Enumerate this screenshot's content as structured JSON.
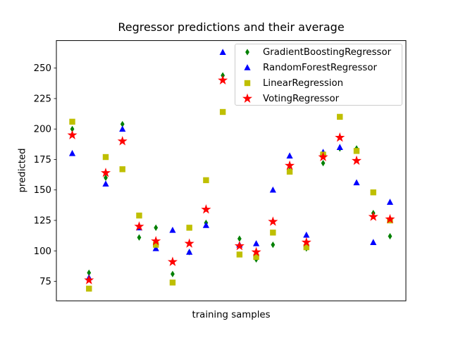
{
  "figure": {
    "background": "#ffffff"
  },
  "axes": {
    "spine_color": "#000000",
    "tick_color": "#000000"
  },
  "chart_data": {
    "type": "scatter",
    "title": "Regressor predictions and their average",
    "xlabel": "training samples",
    "ylabel": "predicted",
    "x": [
      0,
      1,
      2,
      3,
      4,
      5,
      6,
      7,
      8,
      9,
      10,
      11,
      12,
      13,
      14,
      15,
      16,
      17,
      18,
      19
    ],
    "xlim": [
      -0.95,
      19.95
    ],
    "ylim": [
      59.0,
      272.6
    ],
    "yticks": [
      75,
      100,
      125,
      150,
      175,
      200,
      225,
      250
    ],
    "xticks": [],
    "grid": false,
    "legend_position": "upper right",
    "series": [
      {
        "name": "GradientBoostingRegressor",
        "marker": "diamond",
        "color": "#008000",
        "values": [
          200,
          82,
          160,
          204,
          111,
          119,
          81,
          99,
          123,
          244,
          110,
          93,
          105,
          166,
          102,
          172,
          184,
          184,
          131,
          112
        ]
      },
      {
        "name": "RandomForestRegressor",
        "marker": "triangle-up",
        "color": "#0000ff",
        "values": [
          180,
          78,
          155,
          200,
          119,
          102,
          117,
          99,
          121,
          263,
          105,
          106,
          150,
          178,
          113,
          181,
          185,
          156,
          107,
          140
        ]
      },
      {
        "name": "LinearRegression",
        "marker": "square",
        "color": "#bfbf00",
        "values": [
          206,
          69,
          177,
          167,
          129,
          105,
          74,
          119,
          158,
          214,
          97,
          95,
          115,
          165,
          103,
          179,
          210,
          182,
          148,
          125
        ]
      },
      {
        "name": "VotingRegressor",
        "marker": "star",
        "color": "#ff0000",
        "values": [
          195,
          76,
          164,
          190,
          120,
          108,
          91,
          106,
          134,
          240,
          104,
          99,
          124,
          170,
          107,
          177,
          193,
          174,
          128,
          126
        ]
      }
    ]
  }
}
